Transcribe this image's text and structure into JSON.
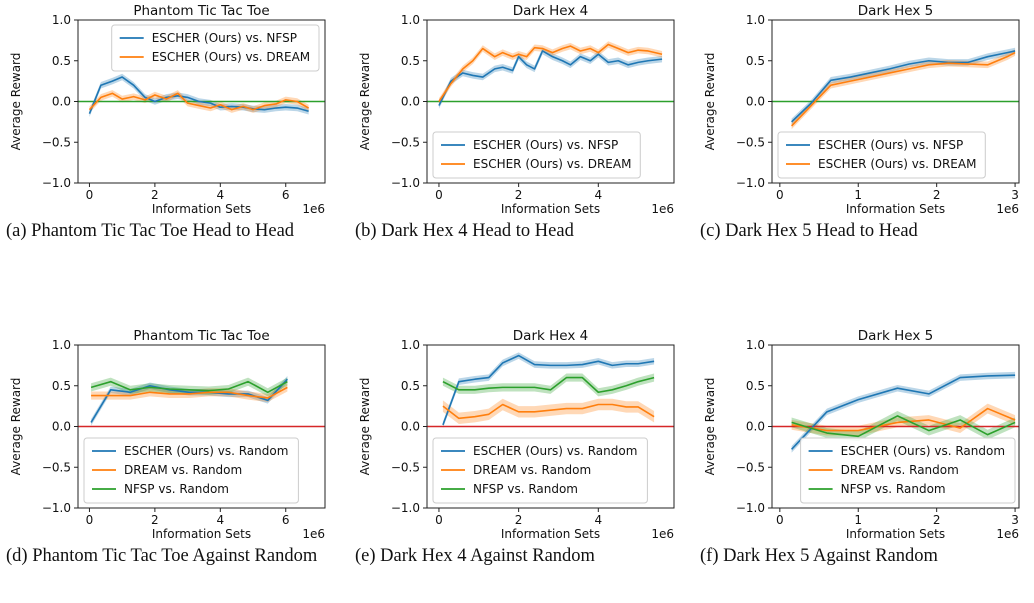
{
  "colors": {
    "escher": "#1f77b4",
    "dream": "#ff7f0e",
    "nfsp": "#2ca02c",
    "ref_h2h": "#2ca02c",
    "ref_random": "#d62728"
  },
  "chart_data": [
    {
      "type": "line",
      "title": "Phantom Tic Tac Toe",
      "caption": "(a) Phantom Tic Tac Toe Head to Head",
      "xlabel": "Information Sets",
      "ylabel": "Average Reward",
      "x_scale_label": "1e6",
      "xlim": [
        -0.35,
        7.2
      ],
      "ylim": [
        -1.0,
        1.0
      ],
      "xticks": [
        0,
        2,
        4,
        6
      ],
      "xtick_labels": [
        "0",
        "2",
        "4",
        "6"
      ],
      "yticks": [
        -1.0,
        -0.5,
        0.0,
        0.5,
        1.0
      ],
      "ytick_labels": [
        "−1.0",
        "−0.5",
        "0.0",
        "0.5",
        "1.0"
      ],
      "reference_line": {
        "y": 0.0,
        "color_key": "ref_h2h"
      },
      "legend": {
        "placement": "top-right"
      },
      "series": [
        {
          "name": "ESCHER (Ours) vs. NFSP",
          "color_key": "escher",
          "x": [
            0.0,
            0.35,
            0.7,
            1.0,
            1.35,
            1.7,
            2.0,
            2.35,
            2.7,
            3.0,
            3.35,
            3.7,
            4.0,
            4.35,
            4.7,
            5.0,
            5.35,
            5.7,
            6.0,
            6.35,
            6.7
          ],
          "y": [
            -0.15,
            0.2,
            0.25,
            0.3,
            0.2,
            0.05,
            0.0,
            0.05,
            0.07,
            0.05,
            0.0,
            -0.02,
            -0.07,
            -0.06,
            -0.07,
            -0.09,
            -0.1,
            -0.08,
            -0.07,
            -0.08,
            -0.12
          ],
          "band": 0.04
        },
        {
          "name": "ESCHER (Ours) vs. DREAM",
          "color_key": "dream",
          "x": [
            0.0,
            0.35,
            0.7,
            1.0,
            1.35,
            1.7,
            2.0,
            2.35,
            2.7,
            3.0,
            3.35,
            3.7,
            4.0,
            4.35,
            4.7,
            5.0,
            5.35,
            5.7,
            6.0,
            6.35,
            6.7
          ],
          "y": [
            -0.1,
            0.05,
            0.1,
            0.03,
            0.06,
            0.02,
            0.08,
            0.03,
            0.1,
            -0.02,
            -0.05,
            -0.08,
            -0.04,
            -0.1,
            -0.06,
            -0.1,
            -0.05,
            -0.03,
            0.02,
            0.0,
            -0.08
          ],
          "band": 0.04
        }
      ]
    },
    {
      "type": "line",
      "title": "Dark Hex 4",
      "caption": "(b) Dark Hex 4 Head to Head",
      "xlabel": "Information Sets",
      "ylabel": "Average Reward",
      "x_scale_label": "1e6",
      "xlim": [
        -0.3,
        5.9
      ],
      "ylim": [
        -1.0,
        1.0
      ],
      "xticks": [
        0,
        2,
        4
      ],
      "xtick_labels": [
        "0",
        "2",
        "4"
      ],
      "yticks": [
        -1.0,
        -0.5,
        0.0,
        0.5,
        1.0
      ],
      "ytick_labels": [
        "−1.0",
        "−0.5",
        "0.0",
        "0.5",
        "1.0"
      ],
      "reference_line": {
        "y": 0.0,
        "color_key": "ref_h2h"
      },
      "legend": {
        "placement": "lower-left"
      },
      "series": [
        {
          "name": "ESCHER (Ours) vs. NFSP",
          "color_key": "escher",
          "x": [
            0.0,
            0.3,
            0.6,
            0.85,
            1.1,
            1.4,
            1.6,
            1.85,
            2.0,
            2.2,
            2.4,
            2.6,
            2.85,
            3.1,
            3.3,
            3.55,
            3.8,
            4.0,
            4.25,
            4.5,
            4.75,
            5.0,
            5.25,
            5.6
          ],
          "y": [
            -0.05,
            0.25,
            0.35,
            0.32,
            0.3,
            0.4,
            0.42,
            0.38,
            0.55,
            0.45,
            0.4,
            0.62,
            0.55,
            0.5,
            0.45,
            0.55,
            0.5,
            0.58,
            0.48,
            0.5,
            0.45,
            0.48,
            0.5,
            0.52
          ],
          "band": 0.04
        },
        {
          "name": "ESCHER (Ours) vs. DREAM",
          "color_key": "dream",
          "x": [
            0.0,
            0.3,
            0.6,
            0.85,
            1.1,
            1.4,
            1.6,
            1.85,
            2.0,
            2.2,
            2.4,
            2.6,
            2.85,
            3.1,
            3.3,
            3.55,
            3.8,
            4.0,
            4.25,
            4.5,
            4.75,
            5.0,
            5.25,
            5.6
          ],
          "y": [
            0.0,
            0.22,
            0.4,
            0.5,
            0.65,
            0.55,
            0.6,
            0.55,
            0.58,
            0.55,
            0.66,
            0.65,
            0.6,
            0.65,
            0.68,
            0.62,
            0.65,
            0.6,
            0.7,
            0.65,
            0.6,
            0.63,
            0.62,
            0.58
          ],
          "band": 0.04
        }
      ]
    },
    {
      "type": "line",
      "title": "Dark Hex 5",
      "caption": "(c) Dark Hex 5 Head to Head",
      "xlabel": "Information Sets",
      "ylabel": "Average Reward",
      "x_scale_label": "1e6",
      "xlim": [
        -0.1,
        3.05
      ],
      "ylim": [
        -1.0,
        1.0
      ],
      "xticks": [
        0,
        1,
        2,
        3
      ],
      "xtick_labels": [
        "0",
        "1",
        "2",
        "3"
      ],
      "yticks": [
        -1.0,
        -0.5,
        0.0,
        0.5,
        1.0
      ],
      "ytick_labels": [
        "−1.0",
        "−0.5",
        "0.0",
        "0.5",
        "1.0"
      ],
      "reference_line": {
        "y": 0.0,
        "color_key": "ref_h2h"
      },
      "legend": {
        "placement": "lower-left"
      },
      "series": [
        {
          "name": "ESCHER (Ours) vs. NFSP",
          "color_key": "escher",
          "x": [
            0.15,
            0.4,
            0.65,
            0.9,
            1.15,
            1.4,
            1.65,
            1.9,
            2.15,
            2.4,
            2.65,
            2.9,
            3.0
          ],
          "y": [
            -0.25,
            -0.02,
            0.26,
            0.3,
            0.35,
            0.4,
            0.46,
            0.5,
            0.48,
            0.48,
            0.55,
            0.6,
            0.62
          ],
          "band": 0.04
        },
        {
          "name": "ESCHER (Ours) vs. DREAM",
          "color_key": "dream",
          "x": [
            0.15,
            0.4,
            0.65,
            0.9,
            1.15,
            1.4,
            1.65,
            1.9,
            2.15,
            2.4,
            2.65,
            2.9,
            3.0
          ],
          "y": [
            -0.3,
            -0.05,
            0.2,
            0.25,
            0.3,
            0.35,
            0.4,
            0.45,
            0.47,
            0.46,
            0.45,
            0.55,
            0.6
          ],
          "band": 0.04
        }
      ]
    },
    {
      "type": "line",
      "title": "Phantom Tic Tac Toe",
      "caption": "(d) Phantom Tic Tac Toe Against Random",
      "xlabel": "Information Sets",
      "ylabel": "Average Reward",
      "x_scale_label": "1e6",
      "xlim": [
        -0.35,
        7.2
      ],
      "ylim": [
        -1.0,
        1.0
      ],
      "xticks": [
        0,
        2,
        4,
        6
      ],
      "xtick_labels": [
        "0",
        "2",
        "4",
        "6"
      ],
      "yticks": [
        -1.0,
        -0.5,
        0.0,
        0.5,
        1.0
      ],
      "ytick_labels": [
        "−1.0",
        "−0.5",
        "0.0",
        "0.5",
        "1.0"
      ],
      "reference_line": {
        "y": 0.0,
        "color_key": "ref_random"
      },
      "legend": {
        "placement": "lower-left"
      },
      "series": [
        {
          "name": "ESCHER (Ours) vs. Random",
          "color_key": "escher",
          "x": [
            0.05,
            0.65,
            1.25,
            1.85,
            2.45,
            3.05,
            3.65,
            4.25,
            4.85,
            5.45,
            6.05
          ],
          "y": [
            0.05,
            0.45,
            0.42,
            0.5,
            0.45,
            0.42,
            0.42,
            0.4,
            0.4,
            0.32,
            0.58
          ],
          "band": 0.04
        },
        {
          "name": "DREAM vs. Random",
          "color_key": "dream",
          "x": [
            0.05,
            0.65,
            1.25,
            1.85,
            2.45,
            3.05,
            3.65,
            4.25,
            4.85,
            5.45,
            6.05
          ],
          "y": [
            0.38,
            0.38,
            0.38,
            0.42,
            0.4,
            0.4,
            0.42,
            0.42,
            0.38,
            0.35,
            0.48
          ],
          "band": 0.05
        },
        {
          "name": "NFSP vs. Random",
          "color_key": "nfsp",
          "x": [
            0.05,
            0.65,
            1.25,
            1.85,
            2.45,
            3.05,
            3.65,
            4.25,
            4.85,
            5.45,
            6.05
          ],
          "y": [
            0.48,
            0.55,
            0.45,
            0.48,
            0.46,
            0.45,
            0.44,
            0.46,
            0.55,
            0.42,
            0.55
          ],
          "band": 0.05
        }
      ]
    },
    {
      "type": "line",
      "title": "Dark Hex 4",
      "caption": "(e) Dark Hex 4 Against Random",
      "xlabel": "Information Sets",
      "ylabel": "Average Reward",
      "x_scale_label": "1e6",
      "xlim": [
        -0.3,
        5.9
      ],
      "ylim": [
        -1.0,
        1.0
      ],
      "xticks": [
        0,
        2,
        4
      ],
      "xtick_labels": [
        "0",
        "2",
        "4"
      ],
      "yticks": [
        -1.0,
        -0.5,
        0.0,
        0.5,
        1.0
      ],
      "ytick_labels": [
        "−1.0",
        "−0.5",
        "0.0",
        "0.5",
        "1.0"
      ],
      "reference_line": {
        "y": 0.0,
        "color_key": "ref_random"
      },
      "legend": {
        "placement": "lower-left"
      },
      "series": [
        {
          "name": "ESCHER (Ours) vs. Random",
          "color_key": "escher",
          "x": [
            0.1,
            0.5,
            0.9,
            1.25,
            1.6,
            2.0,
            2.4,
            2.8,
            3.2,
            3.6,
            4.0,
            4.35,
            4.7,
            5.0,
            5.4
          ],
          "y": [
            0.02,
            0.55,
            0.58,
            0.6,
            0.78,
            0.87,
            0.76,
            0.75,
            0.75,
            0.76,
            0.8,
            0.75,
            0.77,
            0.77,
            0.8
          ],
          "band": 0.04
        },
        {
          "name": "DREAM vs. Random",
          "color_key": "dream",
          "x": [
            0.1,
            0.5,
            0.9,
            1.25,
            1.6,
            2.0,
            2.4,
            2.8,
            3.2,
            3.6,
            4.0,
            4.35,
            4.7,
            5.0,
            5.4
          ],
          "y": [
            0.25,
            0.1,
            0.12,
            0.15,
            0.27,
            0.18,
            0.18,
            0.2,
            0.22,
            0.22,
            0.27,
            0.27,
            0.24,
            0.24,
            0.12
          ],
          "band": 0.07
        },
        {
          "name": "NFSP vs. Random",
          "color_key": "nfsp",
          "x": [
            0.1,
            0.5,
            0.9,
            1.25,
            1.6,
            2.0,
            2.4,
            2.8,
            3.2,
            3.6,
            4.0,
            4.35,
            4.7,
            5.0,
            5.4
          ],
          "y": [
            0.55,
            0.45,
            0.45,
            0.47,
            0.48,
            0.48,
            0.48,
            0.45,
            0.6,
            0.6,
            0.42,
            0.45,
            0.5,
            0.55,
            0.6
          ],
          "band": 0.05
        }
      ]
    },
    {
      "type": "line",
      "title": "Dark Hex 5",
      "caption": "(f) Dark Hex 5 Against Random",
      "xlabel": "Information Sets",
      "ylabel": "Average Reward",
      "x_scale_label": "1e6",
      "xlim": [
        -0.1,
        3.05
      ],
      "ylim": [
        -1.0,
        1.0
      ],
      "xticks": [
        0,
        1,
        2,
        3
      ],
      "xtick_labels": [
        "0",
        "1",
        "2",
        "3"
      ],
      "yticks": [
        -1.0,
        -0.5,
        0.0,
        0.5,
        1.0
      ],
      "ytick_labels": [
        "−1.0",
        "−0.5",
        "0.0",
        "0.5",
        "1.0"
      ],
      "reference_line": {
        "y": 0.0,
        "color_key": "ref_random"
      },
      "legend": {
        "placement": "lower-right"
      },
      "series": [
        {
          "name": "ESCHER (Ours) vs. Random",
          "color_key": "escher",
          "x": [
            0.15,
            0.6,
            1.0,
            1.5,
            1.9,
            2.3,
            2.65,
            3.0
          ],
          "y": [
            -0.28,
            0.18,
            0.33,
            0.47,
            0.4,
            0.6,
            0.62,
            0.63
          ],
          "band": 0.04
        },
        {
          "name": "DREAM vs. Random",
          "color_key": "dream",
          "x": [
            0.15,
            0.6,
            1.0,
            1.5,
            1.9,
            2.3,
            2.65,
            3.0
          ],
          "y": [
            0.02,
            -0.05,
            -0.05,
            0.05,
            0.08,
            -0.02,
            0.22,
            0.08
          ],
          "band": 0.06
        },
        {
          "name": "NFSP vs. Random",
          "color_key": "nfsp",
          "x": [
            0.15,
            0.6,
            1.0,
            1.5,
            1.9,
            2.3,
            2.65,
            3.0
          ],
          "y": [
            0.05,
            -0.08,
            -0.12,
            0.13,
            -0.05,
            0.08,
            -0.1,
            0.05
          ],
          "band": 0.06
        }
      ]
    }
  ]
}
